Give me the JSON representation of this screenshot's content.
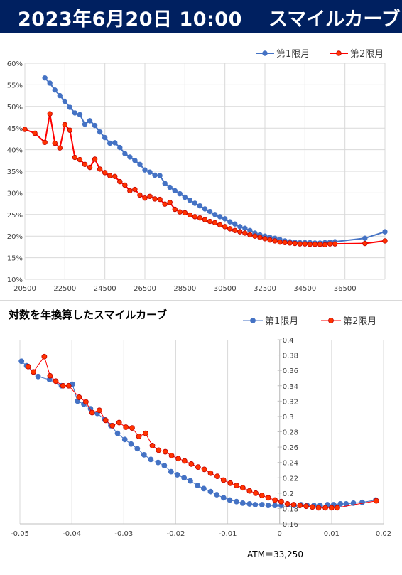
{
  "header": {
    "date": "2023年6月20日 10:00",
    "title": "スマイルカーブ"
  },
  "colors": {
    "header_bg": "#002060",
    "series1": "#4472c4",
    "series2": "#ff0000",
    "series2_marker": "#ff3300"
  },
  "chart_data": [
    {
      "type": "line",
      "title": "",
      "xlabel": "",
      "ylabel": "",
      "xlim": [
        20500,
        38500
      ],
      "ylim": [
        0.1,
        0.6
      ],
      "xticks": [
        "20500",
        "22500",
        "24500",
        "26500",
        "28500",
        "30500",
        "32500",
        "34500",
        "36500"
      ],
      "yticks": [
        "10%",
        "15%",
        "20%",
        "25%",
        "30%",
        "35%",
        "40%",
        "45%",
        "50%",
        "55%",
        "60%"
      ],
      "grid": true,
      "legend": "top-right",
      "series": [
        {
          "name": "第1限月",
          "x": [
            21500,
            21750,
            22000,
            22250,
            22500,
            22750,
            23000,
            23250,
            23500,
            23750,
            24000,
            24250,
            24500,
            24750,
            25000,
            25250,
            25500,
            25750,
            26000,
            26250,
            26500,
            26750,
            27000,
            27250,
            27500,
            27750,
            28000,
            28250,
            28500,
            28750,
            29000,
            29250,
            29500,
            29750,
            30000,
            30250,
            30500,
            30750,
            31000,
            31250,
            31500,
            31750,
            32000,
            32250,
            32500,
            32750,
            33000,
            33250,
            33500,
            33750,
            34000,
            34250,
            34500,
            34750,
            35000,
            35250,
            35500,
            35750,
            36000,
            37500,
            38500
          ],
          "y": [
            0.566,
            0.554,
            0.538,
            0.525,
            0.512,
            0.498,
            0.485,
            0.481,
            0.459,
            0.467,
            0.456,
            0.441,
            0.428,
            0.415,
            0.416,
            0.405,
            0.391,
            0.383,
            0.375,
            0.366,
            0.353,
            0.348,
            0.341,
            0.34,
            0.322,
            0.313,
            0.305,
            0.298,
            0.29,
            0.283,
            0.276,
            0.27,
            0.263,
            0.257,
            0.25,
            0.245,
            0.24,
            0.233,
            0.228,
            0.222,
            0.218,
            0.213,
            0.207,
            0.203,
            0.2,
            0.197,
            0.195,
            0.192,
            0.189,
            0.187,
            0.186,
            0.185,
            0.185,
            0.185,
            0.184,
            0.184,
            0.185,
            0.186,
            0.187,
            0.195,
            0.21
          ]
        },
        {
          "name": "第2限月",
          "x": [
            20500,
            21000,
            21500,
            21750,
            22000,
            22250,
            22500,
            22750,
            23000,
            23250,
            23500,
            23750,
            24000,
            24250,
            24500,
            24750,
            25000,
            25250,
            25500,
            25750,
            26000,
            26250,
            26500,
            26750,
            27000,
            27250,
            27500,
            27750,
            28000,
            28250,
            28500,
            28750,
            29000,
            29250,
            29500,
            29750,
            30000,
            30250,
            30500,
            30750,
            31000,
            31250,
            31500,
            31750,
            32000,
            32250,
            32500,
            32750,
            33000,
            33250,
            33500,
            33750,
            34000,
            34250,
            34500,
            34750,
            35000,
            35250,
            35500,
            35750,
            36000,
            37500,
            38500
          ],
          "y": [
            0.447,
            0.438,
            0.417,
            0.483,
            0.415,
            0.404,
            0.458,
            0.445,
            0.382,
            0.377,
            0.366,
            0.359,
            0.378,
            0.355,
            0.347,
            0.34,
            0.338,
            0.326,
            0.318,
            0.305,
            0.308,
            0.295,
            0.288,
            0.292,
            0.286,
            0.285,
            0.274,
            0.278,
            0.262,
            0.256,
            0.254,
            0.249,
            0.245,
            0.242,
            0.238,
            0.234,
            0.231,
            0.226,
            0.222,
            0.217,
            0.213,
            0.21,
            0.207,
            0.203,
            0.2,
            0.197,
            0.194,
            0.191,
            0.189,
            0.186,
            0.185,
            0.184,
            0.183,
            0.182,
            0.182,
            0.181,
            0.181,
            0.181,
            0.18,
            0.182,
            0.182,
            0.183,
            0.189
          ]
        }
      ]
    },
    {
      "type": "line",
      "title": "対数を年換算したスマイルカーブ",
      "xlabel": "",
      "ylabel": "",
      "xlim": [
        -0.05,
        0.02
      ],
      "ylim": [
        0.16,
        0.4
      ],
      "xticks": [
        "-0.05",
        "-0.04",
        "-0.03",
        "-0.02",
        "-0.01",
        "0",
        "0.01",
        "0.02"
      ],
      "yticks": [
        "0.16",
        "0.18",
        "0.2",
        "0.22",
        "0.24",
        "0.26",
        "0.28",
        "0.3",
        "0.32",
        "0.34",
        "0.36",
        "0.38",
        "0.4"
      ],
      "grid": "vertical",
      "legend": "top-right",
      "annotation": "ATM＝33,250",
      "series": [
        {
          "name": "第1限月",
          "x": [
            -0.0497,
            -0.0487,
            -0.0465,
            -0.0443,
            -0.042,
            -0.0399,
            -0.0389,
            -0.0377,
            -0.0364,
            -0.0351,
            -0.0337,
            -0.0325,
            -0.0312,
            -0.0298,
            -0.0286,
            -0.0274,
            -0.0261,
            -0.0248,
            -0.0234,
            -0.0222,
            -0.0209,
            -0.0197,
            -0.0184,
            -0.0172,
            -0.0158,
            -0.0146,
            -0.0133,
            -0.0121,
            -0.0108,
            -0.0096,
            -0.0083,
            -0.0071,
            -0.0058,
            -0.0047,
            -0.0034,
            -0.0022,
            -0.0009,
            0.0003,
            0.0016,
            0.0028,
            0.0041,
            0.0053,
            0.0066,
            0.0078,
            0.0092,
            0.0104,
            0.0117,
            0.0128,
            0.0142,
            0.0159,
            0.0185
          ],
          "y": [
            0.372,
            0.366,
            0.352,
            0.348,
            0.34,
            0.342,
            0.32,
            0.316,
            0.31,
            0.304,
            0.296,
            0.288,
            0.278,
            0.27,
            0.264,
            0.258,
            0.25,
            0.244,
            0.24,
            0.236,
            0.228,
            0.224,
            0.22,
            0.216,
            0.21,
            0.206,
            0.202,
            0.198,
            0.194,
            0.191,
            0.189,
            0.187,
            0.186,
            0.185,
            0.185,
            0.184,
            0.184,
            0.184,
            0.185,
            0.184,
            0.185,
            0.184,
            0.184,
            0.184,
            0.185,
            0.185,
            0.186,
            0.186,
            0.187,
            0.188,
            0.191
          ]
        },
        {
          "name": "第2限月",
          "x": [
            -0.0484,
            -0.0474,
            -0.0453,
            -0.0442,
            -0.0431,
            -0.0417,
            -0.0406,
            -0.0386,
            -0.0373,
            -0.0361,
            -0.0347,
            -0.0335,
            -0.0322,
            -0.0309,
            -0.0296,
            -0.0284,
            -0.0271,
            -0.0258,
            -0.0245,
            -0.0233,
            -0.022,
            -0.0208,
            -0.0195,
            -0.0183,
            -0.017,
            -0.0157,
            -0.0145,
            -0.0133,
            -0.012,
            -0.0108,
            -0.0095,
            -0.0083,
            -0.0071,
            -0.0058,
            -0.0046,
            -0.0034,
            -0.0022,
            -0.0009,
            0.0003,
            0.0015,
            0.0027,
            0.0039,
            0.0051,
            0.0063,
            0.0075,
            0.0088,
            0.01,
            0.0111,
            0.0186
          ],
          "y": [
            0.365,
            0.358,
            0.378,
            0.353,
            0.346,
            0.34,
            0.34,
            0.325,
            0.319,
            0.305,
            0.308,
            0.295,
            0.288,
            0.292,
            0.286,
            0.285,
            0.274,
            0.278,
            0.262,
            0.256,
            0.254,
            0.249,
            0.245,
            0.242,
            0.238,
            0.234,
            0.231,
            0.226,
            0.222,
            0.217,
            0.213,
            0.21,
            0.207,
            0.203,
            0.2,
            0.197,
            0.194,
            0.191,
            0.189,
            0.186,
            0.185,
            0.184,
            0.183,
            0.182,
            0.181,
            0.181,
            0.181,
            0.181,
            0.19
          ]
        }
      ]
    }
  ]
}
